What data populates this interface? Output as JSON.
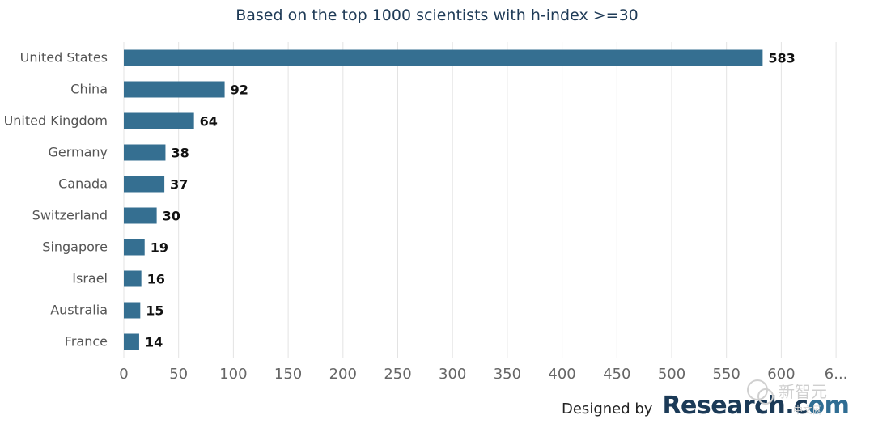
{
  "chart_data": {
    "type": "bar",
    "orientation": "horizontal",
    "title": "Based on the top 1000 scientists with h-index >=30",
    "categories": [
      "United States",
      "China",
      "United Kingdom",
      "Germany",
      "Canada",
      "Switzerland",
      "Singapore",
      "Israel",
      "Australia",
      "France"
    ],
    "values": [
      583,
      92,
      64,
      38,
      37,
      30,
      19,
      16,
      15,
      14
    ],
    "data_labels": [
      "583",
      "92",
      "64",
      "38",
      "37",
      "30",
      "19",
      "16",
      "15",
      "14"
    ],
    "x_ticks": [
      "0",
      "50",
      "100",
      "150",
      "200",
      "250",
      "300",
      "350",
      "400",
      "450",
      "500",
      "550",
      "600",
      "6..."
    ],
    "xlim": [
      0,
      650
    ],
    "grid": "vertical",
    "bar_color": "#356f91"
  },
  "credit": {
    "prefix": "Designed by",
    "brand_main": "Research.c",
    "brand_accent": "om"
  },
  "watermark": {
    "text": "新智元",
    "sub": "中文网"
  }
}
